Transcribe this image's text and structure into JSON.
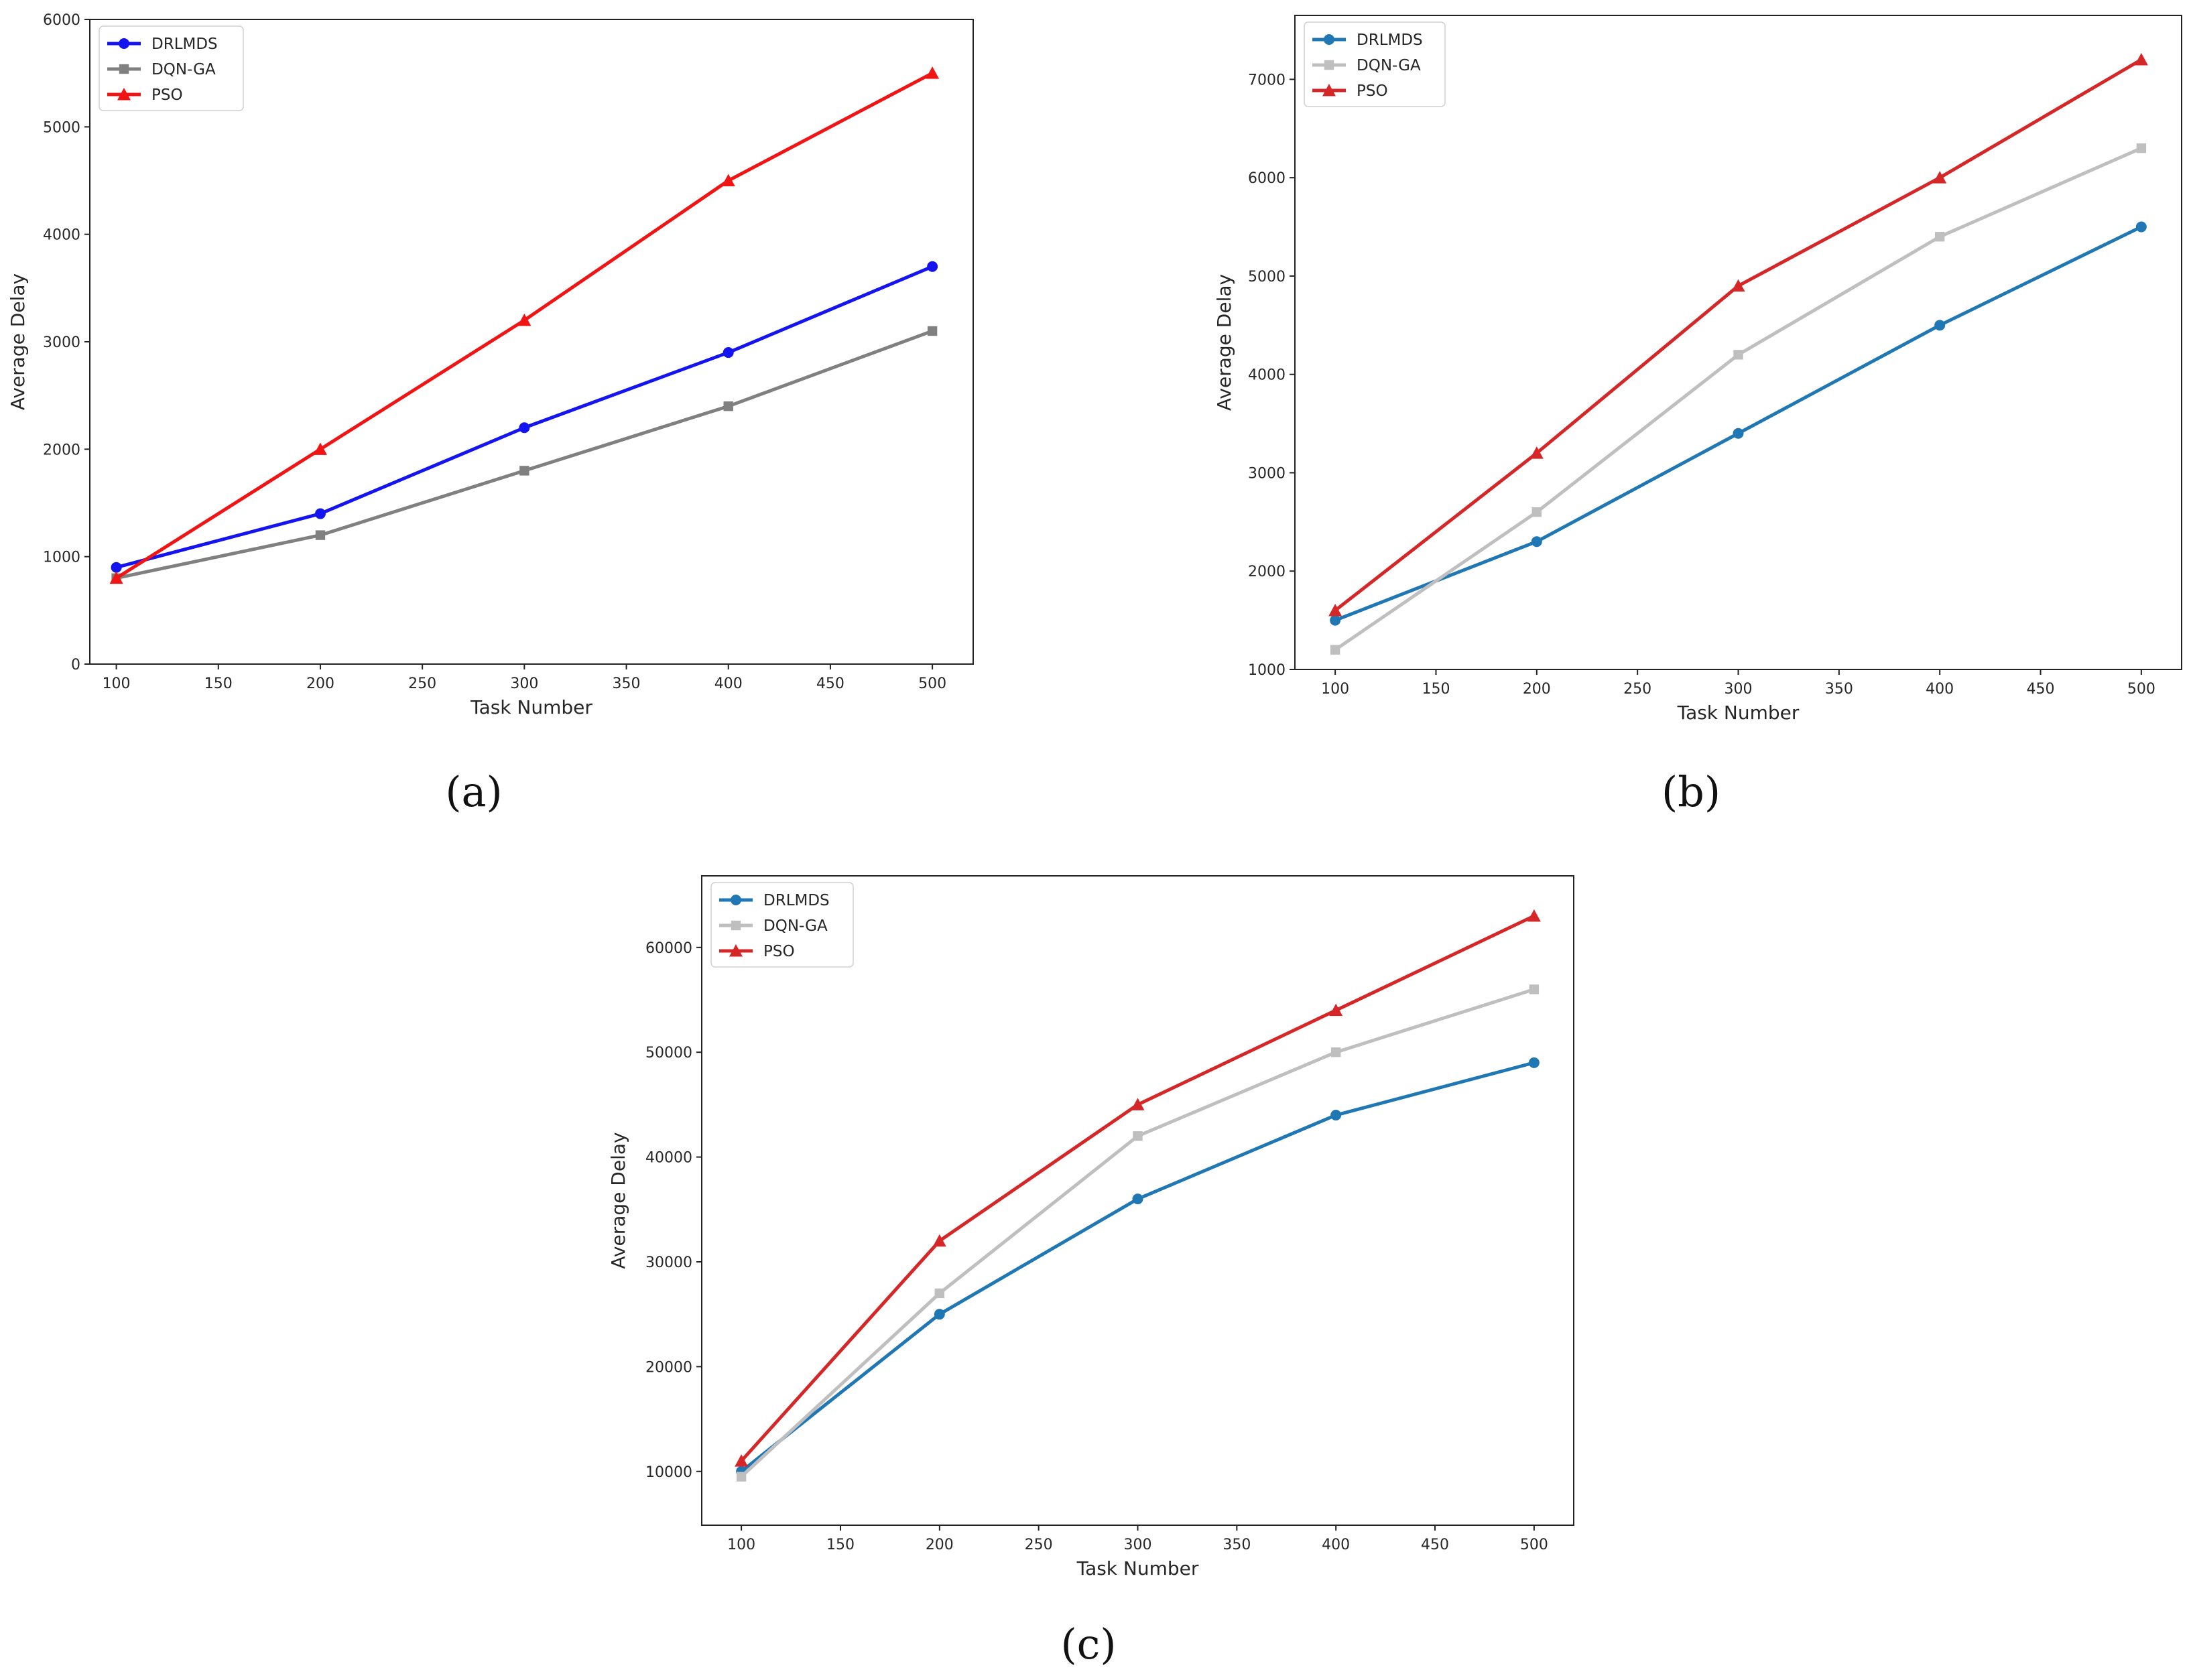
{
  "chart_data": [
    {
      "id": "a",
      "type": "line",
      "panel_label": "(a)",
      "title": "",
      "xlabel": "Task Number",
      "ylabel": "Average Delay",
      "xlim": [
        87,
        520
      ],
      "ylim": [
        0,
        6000
      ],
      "xticks": [
        100,
        150,
        200,
        250,
        300,
        350,
        400,
        450,
        500
      ],
      "yticks": [
        0,
        1000,
        2000,
        3000,
        4000,
        5000,
        6000
      ],
      "x": [
        100,
        200,
        300,
        400,
        500
      ],
      "legend_position": "upper-left",
      "grid": false,
      "series": [
        {
          "name": "DRLMDS",
          "color": "#1414f0",
          "marker": "circle",
          "values": [
            900,
            1400,
            2200,
            2900,
            3700
          ]
        },
        {
          "name": "DQN-GA",
          "color": "#808080",
          "marker": "square",
          "values": [
            800,
            1200,
            1800,
            2400,
            3100
          ]
        },
        {
          "name": "PSO",
          "color": "#f01414",
          "marker": "triangle",
          "values": [
            800,
            2000,
            3200,
            4500,
            5500
          ]
        }
      ]
    },
    {
      "id": "b",
      "type": "line",
      "panel_label": "(b)",
      "title": "",
      "xlabel": "Task Number",
      "ylabel": "Average Delay",
      "xlim": [
        80,
        520
      ],
      "ylim": [
        1000,
        7650
      ],
      "xticks": [
        100,
        150,
        200,
        250,
        300,
        350,
        400,
        450,
        500
      ],
      "yticks": [
        1000,
        2000,
        3000,
        4000,
        5000,
        6000,
        7000
      ],
      "x": [
        100,
        200,
        300,
        400,
        500
      ],
      "legend_position": "upper-left",
      "grid": false,
      "series": [
        {
          "name": "DRLMDS",
          "color": "#1f77b4",
          "marker": "circle",
          "values": [
            1500,
            2300,
            3400,
            4500,
            5500
          ]
        },
        {
          "name": "DQN-GA",
          "color": "#bfbfbf",
          "marker": "square",
          "values": [
            1200,
            2600,
            4200,
            5400,
            6300
          ]
        },
        {
          "name": "PSO",
          "color": "#d62728",
          "marker": "triangle",
          "values": [
            1600,
            3200,
            4900,
            6000,
            7200
          ]
        }
      ]
    },
    {
      "id": "c",
      "type": "line",
      "panel_label": "(c)",
      "title": "",
      "xlabel": "Task Number",
      "ylabel": "Average Delay",
      "xlim": [
        80,
        520
      ],
      "ylim": [
        4870,
        66830
      ],
      "xticks": [
        100,
        150,
        200,
        250,
        300,
        350,
        400,
        450,
        500
      ],
      "yticks": [
        10000,
        20000,
        30000,
        40000,
        50000,
        60000
      ],
      "x": [
        100,
        200,
        300,
        400,
        500
      ],
      "legend_position": "upper-left",
      "grid": false,
      "series": [
        {
          "name": "DRLMDS",
          "color": "#1f77b4",
          "marker": "circle",
          "values": [
            10000,
            25000,
            36000,
            44000,
            49000
          ]
        },
        {
          "name": "DQN-GA",
          "color": "#bfbfbf",
          "marker": "square",
          "values": [
            9500,
            27000,
            42000,
            50000,
            56000
          ]
        },
        {
          "name": "PSO",
          "color": "#d62728",
          "marker": "triangle",
          "values": [
            11000,
            32000,
            45000,
            54000,
            63000
          ]
        }
      ]
    }
  ]
}
